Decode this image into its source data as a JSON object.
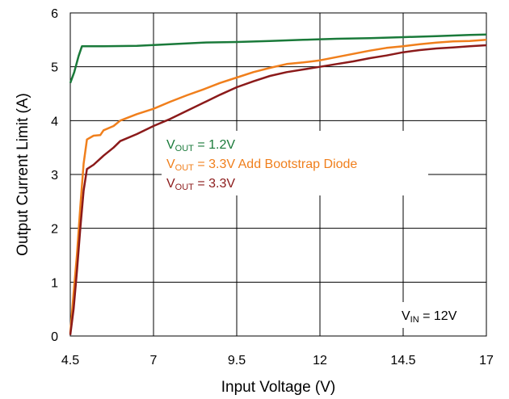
{
  "chart_data": {
    "type": "line",
    "title": "",
    "xlabel": "Input Voltage (V)",
    "ylabel": "Output Current Limit (A)",
    "xlim": [
      4.5,
      17
    ],
    "ylim": [
      0,
      6
    ],
    "xticks": [
      4.5,
      7,
      9.5,
      12,
      14.5,
      17
    ],
    "xtick_labels": [
      "4.5",
      "7",
      "9.5",
      "12",
      "14.5",
      "17"
    ],
    "yticks": [
      0,
      1,
      2,
      3,
      4,
      5,
      6
    ],
    "ytick_labels": [
      "0",
      "1",
      "2",
      "3",
      "4",
      "5",
      "6"
    ],
    "grid": "horizontal and vertical at ticks",
    "legend_position": "center",
    "annotation": {
      "main": "V",
      "sub": "IN",
      "rest": " = 12V"
    },
    "series": [
      {
        "name": "VOUT = 1.2V",
        "label_main": "V",
        "label_sub": "OUT",
        "label_rest": " = 1.2V",
        "color": "#1a7a3a",
        "points": [
          [
            4.5,
            4.7
          ],
          [
            4.62,
            4.9
          ],
          [
            4.75,
            5.2
          ],
          [
            4.85,
            5.38
          ],
          [
            5.5,
            5.38
          ],
          [
            6.5,
            5.39
          ],
          [
            7.5,
            5.42
          ],
          [
            8.5,
            5.45
          ],
          [
            9.5,
            5.46
          ],
          [
            10.5,
            5.48
          ],
          [
            11.5,
            5.5
          ],
          [
            12.5,
            5.52
          ],
          [
            13.5,
            5.53
          ],
          [
            14.5,
            5.55
          ],
          [
            15.5,
            5.57
          ],
          [
            16.5,
            5.59
          ],
          [
            17,
            5.6
          ]
        ]
      },
      {
        "name": "VOUT = 3.3V Add Bootstrap Diode",
        "label_main": "V",
        "label_sub": "OUT",
        "label_rest": " = 3.3V Add Bootstrap Diode",
        "color": "#f07f1c",
        "points": [
          [
            4.5,
            0.05
          ],
          [
            4.6,
            0.8
          ],
          [
            4.7,
            1.5
          ],
          [
            4.8,
            2.4
          ],
          [
            4.9,
            3.2
          ],
          [
            5.0,
            3.65
          ],
          [
            5.2,
            3.72
          ],
          [
            5.4,
            3.73
          ],
          [
            5.5,
            3.82
          ],
          [
            5.8,
            3.9
          ],
          [
            6.0,
            4.0
          ],
          [
            6.5,
            4.12
          ],
          [
            7,
            4.22
          ],
          [
            7.5,
            4.35
          ],
          [
            8,
            4.47
          ],
          [
            8.5,
            4.58
          ],
          [
            9,
            4.7
          ],
          [
            9.5,
            4.8
          ],
          [
            10,
            4.9
          ],
          [
            10.5,
            4.98
          ],
          [
            11,
            5.05
          ],
          [
            11.5,
            5.08
          ],
          [
            12,
            5.12
          ],
          [
            12.5,
            5.18
          ],
          [
            13,
            5.24
          ],
          [
            13.5,
            5.3
          ],
          [
            14,
            5.35
          ],
          [
            14.5,
            5.38
          ],
          [
            15,
            5.42
          ],
          [
            15.5,
            5.45
          ],
          [
            16,
            5.47
          ],
          [
            16.5,
            5.48
          ],
          [
            17,
            5.5
          ]
        ]
      },
      {
        "name": "VOUT = 3.3V",
        "label_main": "V",
        "label_sub": "OUT",
        "label_rest": " = 3.3V",
        "color": "#8b1a1a",
        "points": [
          [
            4.5,
            0.02
          ],
          [
            4.6,
            0.5
          ],
          [
            4.7,
            1.2
          ],
          [
            4.8,
            2.0
          ],
          [
            4.9,
            2.7
          ],
          [
            5.0,
            3.1
          ],
          [
            5.2,
            3.18
          ],
          [
            5.5,
            3.35
          ],
          [
            5.8,
            3.5
          ],
          [
            6.0,
            3.62
          ],
          [
            6.5,
            3.75
          ],
          [
            7,
            3.9
          ],
          [
            7.5,
            4.03
          ],
          [
            8,
            4.18
          ],
          [
            8.5,
            4.33
          ],
          [
            9,
            4.48
          ],
          [
            9.5,
            4.62
          ],
          [
            10,
            4.73
          ],
          [
            10.5,
            4.83
          ],
          [
            11,
            4.9
          ],
          [
            11.5,
            4.95
          ],
          [
            12,
            5.0
          ],
          [
            12.5,
            5.05
          ],
          [
            13,
            5.1
          ],
          [
            13.5,
            5.16
          ],
          [
            14,
            5.21
          ],
          [
            14.5,
            5.27
          ],
          [
            15,
            5.31
          ],
          [
            15.5,
            5.34
          ],
          [
            16,
            5.36
          ],
          [
            16.5,
            5.38
          ],
          [
            17,
            5.4
          ]
        ]
      }
    ]
  }
}
